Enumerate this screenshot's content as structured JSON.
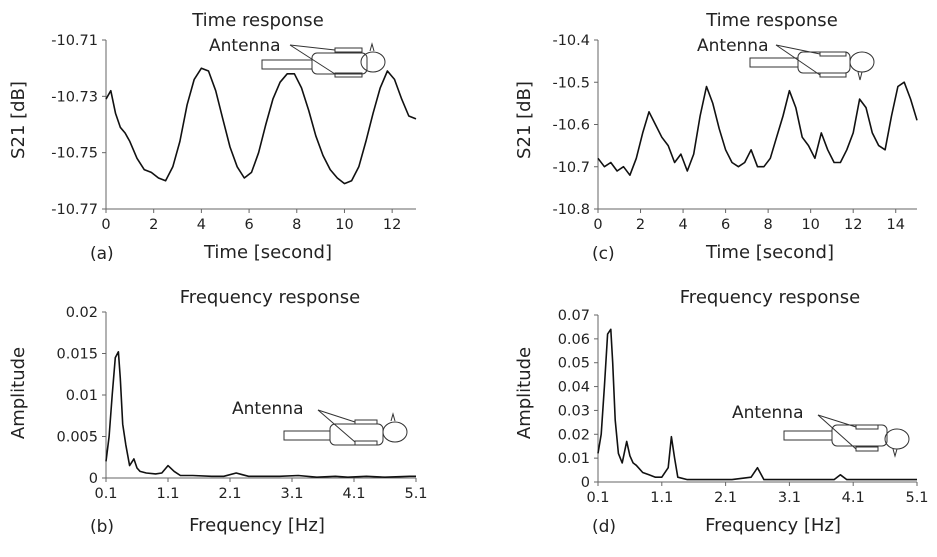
{
  "chart_data": [
    {
      "id": "a",
      "type": "line",
      "panel_label": "(a)",
      "title": "Time response",
      "xlabel": "Time [second]",
      "ylabel": "S21 [dB]",
      "xlim": [
        0,
        13
      ],
      "ylim": [
        -10.77,
        -10.71
      ],
      "xticks": [
        0,
        2,
        4,
        6,
        8,
        10,
        12
      ],
      "yticks": [
        -10.71,
        -10.73,
        -10.75,
        -10.77
      ],
      "annotation": "Antenna",
      "series": [
        {
          "x": [
            0,
            0.2,
            0.4,
            0.6,
            0.8,
            1.0,
            1.3,
            1.6,
            1.9,
            2.2,
            2.5,
            2.8,
            3.1,
            3.4,
            3.7,
            4.0,
            4.3,
            4.6,
            4.9,
            5.2,
            5.5,
            5.8,
            6.1,
            6.4,
            6.7,
            7.0,
            7.3,
            7.6,
            7.9,
            8.2,
            8.5,
            8.8,
            9.1,
            9.4,
            9.7,
            10.0,
            10.3,
            10.6,
            10.9,
            11.2,
            11.5,
            11.8,
            12.1,
            12.4,
            12.7,
            13.0
          ],
          "y": [
            -10.731,
            -10.728,
            -10.736,
            -10.741,
            -10.743,
            -10.746,
            -10.752,
            -10.756,
            -10.757,
            -10.759,
            -10.76,
            -10.755,
            -10.746,
            -10.733,
            -10.724,
            -10.72,
            -10.721,
            -10.728,
            -10.738,
            -10.748,
            -10.755,
            -10.759,
            -10.757,
            -10.75,
            -10.74,
            -10.731,
            -10.725,
            -10.722,
            -10.722,
            -10.727,
            -10.735,
            -10.744,
            -10.751,
            -10.756,
            -10.759,
            -10.761,
            -10.76,
            -10.755,
            -10.746,
            -10.736,
            -10.727,
            -10.721,
            -10.724,
            -10.731,
            -10.737,
            -10.738
          ]
        }
      ]
    },
    {
      "id": "b",
      "type": "line",
      "panel_label": "(b)",
      "title": "Frequency response",
      "xlabel": "Frequency [Hz]",
      "ylabel": "Amplitude",
      "xlim": [
        0.1,
        5.1
      ],
      "ylim": [
        0,
        0.02
      ],
      "xticks": [
        "0.1",
        "1.1",
        "2.1",
        "3.1",
        "4.1",
        "5.1"
      ],
      "yticks": [
        "0",
        "0.005",
        "0.01",
        "0.015",
        "0.02"
      ],
      "annotation": "Antenna",
      "series": [
        {
          "x": [
            0.1,
            0.15,
            0.2,
            0.25,
            0.3,
            0.33,
            0.37,
            0.42,
            0.48,
            0.55,
            0.6,
            0.65,
            0.75,
            0.9,
            1.0,
            1.1,
            1.2,
            1.3,
            1.5,
            1.8,
            2.0,
            2.2,
            2.3,
            2.4,
            2.6,
            2.9,
            3.2,
            3.5,
            3.8,
            4.0,
            4.3,
            4.6,
            5.0,
            5.1
          ],
          "y": [
            0.002,
            0.005,
            0.01,
            0.0145,
            0.0152,
            0.012,
            0.0065,
            0.004,
            0.0015,
            0.0023,
            0.0012,
            0.0008,
            0.0006,
            0.0005,
            0.0006,
            0.0015,
            0.0008,
            0.0003,
            0.0003,
            0.0002,
            0.0002,
            0.0006,
            0.0004,
            0.0002,
            0.0002,
            0.0002,
            0.0003,
            0.0001,
            0.0002,
            0.0001,
            0.0002,
            0.0001,
            0.0002,
            0.0002
          ]
        }
      ]
    },
    {
      "id": "c",
      "type": "line",
      "panel_label": "(c)",
      "title": "Time response",
      "xlabel": "Time [second]",
      "ylabel": "S21 [dB]",
      "xlim": [
        0,
        15
      ],
      "ylim": [
        -10.8,
        -10.4
      ],
      "xticks": [
        0,
        2,
        4,
        6,
        8,
        10,
        12,
        14
      ],
      "yticks": [
        "-10.4",
        "-10.5",
        "-10.6",
        "-10.7",
        "-10.8"
      ],
      "annotation": "Antenna",
      "series": [
        {
          "x": [
            0,
            0.3,
            0.6,
            0.9,
            1.2,
            1.5,
            1.8,
            2.1,
            2.4,
            2.7,
            3.0,
            3.3,
            3.6,
            3.9,
            4.2,
            4.5,
            4.8,
            5.1,
            5.4,
            5.7,
            6.0,
            6.3,
            6.6,
            6.9,
            7.2,
            7.5,
            7.8,
            8.1,
            8.4,
            8.7,
            9.0,
            9.3,
            9.6,
            9.9,
            10.2,
            10.5,
            10.8,
            11.1,
            11.4,
            11.7,
            12.0,
            12.3,
            12.6,
            12.9,
            13.2,
            13.5,
            13.8,
            14.1,
            14.4,
            14.7,
            15.0
          ],
          "y": [
            -10.68,
            -10.7,
            -10.69,
            -10.71,
            -10.7,
            -10.72,
            -10.68,
            -10.62,
            -10.57,
            -10.6,
            -10.63,
            -10.65,
            -10.69,
            -10.67,
            -10.71,
            -10.67,
            -10.58,
            -10.51,
            -10.55,
            -10.61,
            -10.66,
            -10.69,
            -10.7,
            -10.69,
            -10.66,
            -10.7,
            -10.7,
            -10.68,
            -10.63,
            -10.58,
            -10.52,
            -10.56,
            -10.63,
            -10.65,
            -10.68,
            -10.62,
            -10.66,
            -10.69,
            -10.69,
            -10.66,
            -10.62,
            -10.54,
            -10.56,
            -10.62,
            -10.65,
            -10.66,
            -10.58,
            -10.51,
            -10.5,
            -10.54,
            -10.59
          ]
        }
      ]
    },
    {
      "id": "d",
      "type": "line",
      "panel_label": "(d)",
      "title": "Frequency response",
      "xlabel": "Frequency [Hz]",
      "ylabel": "Amplitude",
      "xlim": [
        0.1,
        5.1
      ],
      "ylim": [
        0,
        0.07
      ],
      "xticks": [
        "0.1",
        "1.1",
        "2.1",
        "3.1",
        "4.1",
        "5.1"
      ],
      "yticks": [
        "0",
        "0.01",
        "0.02",
        "0.03",
        "0.04",
        "0.05",
        "0.06",
        "0.07"
      ],
      "annotation": "Antenna",
      "series": [
        {
          "x": [
            0.1,
            0.15,
            0.2,
            0.25,
            0.3,
            0.33,
            0.37,
            0.42,
            0.48,
            0.55,
            0.6,
            0.65,
            0.7,
            0.8,
            0.9,
            1.0,
            1.1,
            1.2,
            1.25,
            1.3,
            1.35,
            1.5,
            1.8,
            2.0,
            2.2,
            2.5,
            2.6,
            2.7,
            3.0,
            3.4,
            3.8,
            3.9,
            4.0,
            4.4,
            4.8,
            5.1
          ],
          "y": [
            0.012,
            0.02,
            0.04,
            0.062,
            0.064,
            0.05,
            0.026,
            0.012,
            0.008,
            0.017,
            0.011,
            0.008,
            0.007,
            0.004,
            0.003,
            0.002,
            0.002,
            0.006,
            0.019,
            0.01,
            0.002,
            0.001,
            0.001,
            0.001,
            0.001,
            0.002,
            0.006,
            0.001,
            0.001,
            0.001,
            0.001,
            0.003,
            0.001,
            0.001,
            0.001,
            0.001
          ]
        }
      ]
    }
  ]
}
